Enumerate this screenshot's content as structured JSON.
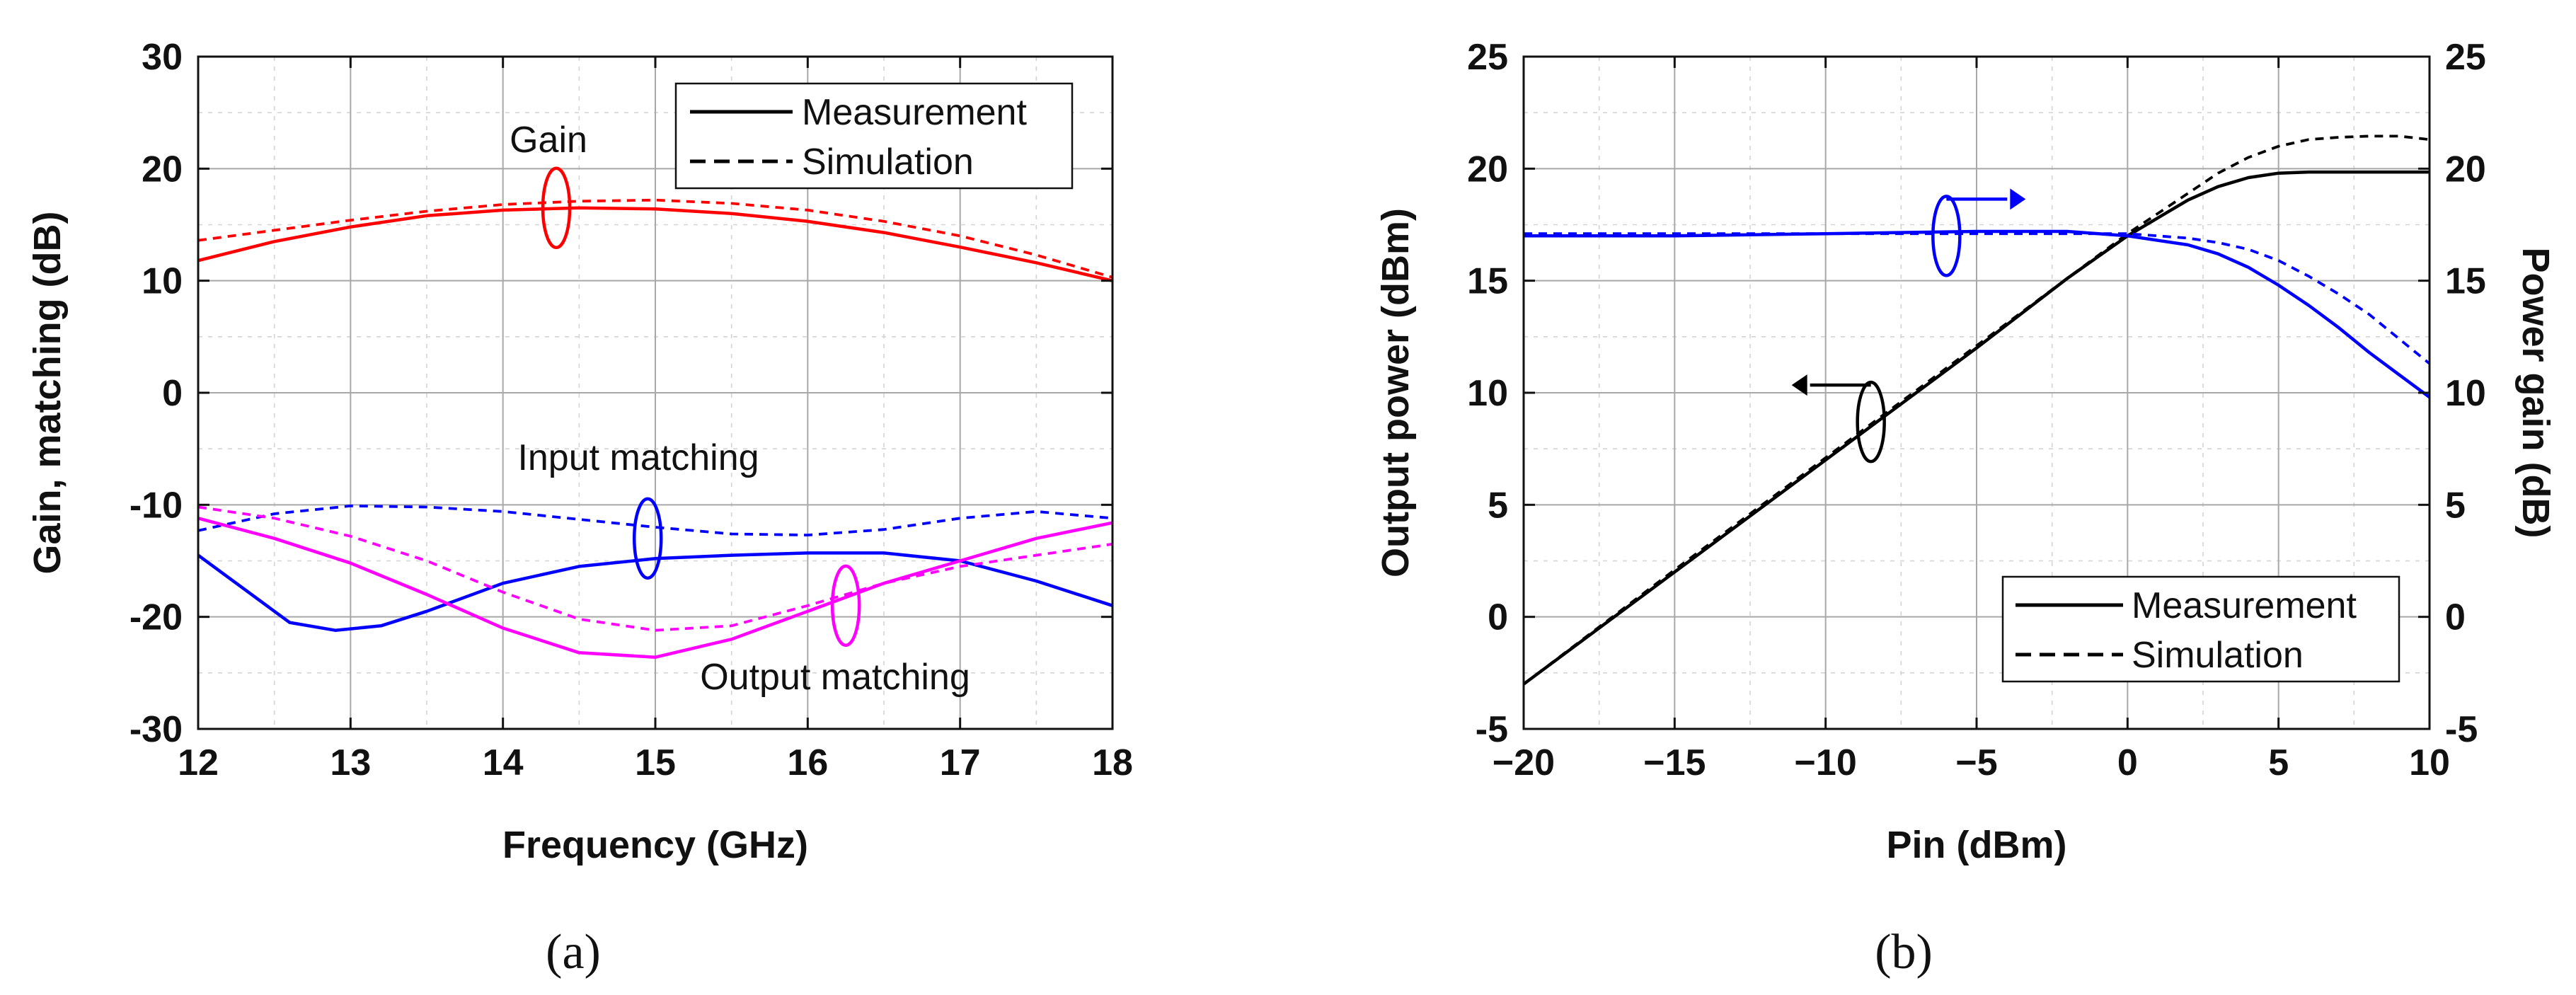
{
  "chart_data": [
    {
      "id": "a",
      "type": "line",
      "caption": "(a)",
      "xlabel": "Frequency (GHz)",
      "ylabel": "Gain, matching (dB)",
      "xlim": [
        12,
        18
      ],
      "ylim": [
        -30,
        30
      ],
      "xticks": [
        12,
        13,
        14,
        15,
        16,
        17,
        18
      ],
      "yticks": [
        -30,
        -20,
        -10,
        0,
        10,
        20,
        30
      ],
      "xtick_labels": [
        "12",
        "13",
        "14",
        "15",
        "16",
        "17",
        "18"
      ],
      "ytick_labels": [
        "-30",
        "-20",
        "-10",
        "0",
        "10",
        "20",
        "30"
      ],
      "grid": true,
      "legend": [
        {
          "label": "Measurement",
          "style": "solid"
        },
        {
          "label": "Simulation",
          "style": "dashed"
        }
      ],
      "series": [
        {
          "name": "Gain (Measurement)",
          "color": "#ff0000",
          "style": "solid",
          "x": [
            12,
            12.5,
            13,
            13.5,
            14,
            14.5,
            15,
            15.5,
            16,
            16.5,
            17,
            17.5,
            18
          ],
          "y": [
            11.8,
            13.5,
            14.8,
            15.8,
            16.3,
            16.5,
            16.4,
            16.0,
            15.3,
            14.3,
            13.0,
            11.6,
            10.0
          ]
        },
        {
          "name": "Gain (Simulation)",
          "color": "#ff0000",
          "style": "dashed",
          "x": [
            12,
            12.5,
            13,
            13.5,
            14,
            14.5,
            15,
            15.5,
            16,
            16.5,
            17,
            17.5,
            18
          ],
          "y": [
            13.6,
            14.5,
            15.4,
            16.2,
            16.8,
            17.1,
            17.2,
            16.9,
            16.3,
            15.3,
            14.0,
            12.3,
            10.3
          ]
        },
        {
          "name": "Input matching (Measurement)",
          "color": "#0000ff",
          "style": "solid",
          "x": [
            12,
            12.3,
            12.6,
            12.9,
            13.2,
            13.5,
            14,
            14.5,
            15,
            15.5,
            16,
            16.5,
            17,
            17.5,
            18
          ],
          "y": [
            -14.5,
            -17.5,
            -20.5,
            -21.2,
            -20.8,
            -19.5,
            -17.0,
            -15.5,
            -14.8,
            -14.5,
            -14.3,
            -14.3,
            -15.0,
            -16.8,
            -19.0
          ]
        },
        {
          "name": "Input matching (Simulation)",
          "color": "#0000ff",
          "style": "dashed",
          "x": [
            12,
            12.5,
            13,
            13.5,
            14,
            14.5,
            15,
            15.5,
            16,
            16.5,
            17,
            17.5,
            18
          ],
          "y": [
            -12.3,
            -10.8,
            -10.1,
            -10.2,
            -10.6,
            -11.3,
            -12.0,
            -12.6,
            -12.7,
            -12.2,
            -11.2,
            -10.6,
            -11.2
          ]
        },
        {
          "name": "Output matching (Measurement)",
          "color": "#ff00ff",
          "style": "solid",
          "x": [
            12,
            12.5,
            13,
            13.5,
            14,
            14.5,
            15,
            15.5,
            16,
            16.5,
            17,
            17.5,
            18
          ],
          "y": [
            -11.2,
            -13.0,
            -15.2,
            -18.0,
            -21.0,
            -23.2,
            -23.6,
            -22.0,
            -19.5,
            -17.0,
            -15.0,
            -13.0,
            -11.6
          ]
        },
        {
          "name": "Output matching (Simulation)",
          "color": "#ff00ff",
          "style": "dashed",
          "x": [
            12,
            12.5,
            13,
            13.5,
            14,
            14.5,
            15,
            15.5,
            16,
            16.5,
            17,
            17.5,
            18
          ],
          "y": [
            -10.2,
            -11.2,
            -12.8,
            -15.0,
            -17.8,
            -20.2,
            -21.2,
            -20.8,
            -19.0,
            -17.0,
            -15.5,
            -14.5,
            -13.5
          ]
        }
      ],
      "annotations": [
        {
          "text": "Gain",
          "color": "#000000",
          "ellipse_color": "#ff0000",
          "at_x": 14.35,
          "at_y": 16.5
        },
        {
          "text": "Input matching",
          "color": "#000000",
          "ellipse_color": "#0000ff",
          "at_x": 14.95,
          "at_y": -13.0
        },
        {
          "text": "Output matching",
          "color": "#000000",
          "ellipse_color": "#ff00ff",
          "at_x": 16.25,
          "at_y": -19.0
        }
      ]
    },
    {
      "id": "b",
      "type": "line",
      "caption": "(b)",
      "xlabel": "Pin (dBm)",
      "ylabel": "Output power (dBm)",
      "y2label": "Power gain (dB)",
      "xlim": [
        -20,
        10
      ],
      "ylim": [
        -5,
        25
      ],
      "y2lim": [
        -5,
        25
      ],
      "xticks": [
        -20,
        -15,
        -10,
        -5,
        0,
        5,
        10
      ],
      "yticks": [
        -5,
        0,
        5,
        10,
        15,
        20,
        25
      ],
      "xtick_labels": [
        "−20",
        "−15",
        "−10",
        "−5",
        "0",
        "5",
        "10"
      ],
      "ytick_labels": [
        "-5",
        "0",
        "5",
        "10",
        "15",
        "20",
        "25"
      ],
      "y2tick_labels": [
        "-5",
        "0",
        "5",
        "10",
        "15",
        "20",
        "25"
      ],
      "grid": true,
      "legend": [
        {
          "label": "Measurement",
          "style": "solid"
        },
        {
          "label": "Simulation",
          "style": "dashed"
        }
      ],
      "series": [
        {
          "name": "Output power (Measurement)",
          "color": "#000000",
          "style": "solid",
          "axis": "left",
          "x": [
            -20,
            -15,
            -10,
            -5,
            -2,
            0,
            1,
            2,
            3,
            4,
            5,
            6,
            8,
            10
          ],
          "y": [
            -3.0,
            2.0,
            7.0,
            12.0,
            15.1,
            17.0,
            17.8,
            18.6,
            19.2,
            19.6,
            19.8,
            19.85,
            19.85,
            19.85
          ]
        },
        {
          "name": "Output power (Simulation)",
          "color": "#000000",
          "style": "dashed",
          "axis": "left",
          "x": [
            -20,
            -15,
            -10,
            -5,
            -2,
            0,
            1,
            2,
            3,
            4,
            5,
            6,
            7,
            8,
            9,
            10
          ],
          "y": [
            -3.0,
            2.1,
            7.1,
            12.1,
            15.1,
            17.1,
            18.0,
            18.9,
            19.8,
            20.5,
            21.0,
            21.3,
            21.4,
            21.45,
            21.45,
            21.3
          ]
        },
        {
          "name": "Power gain (Measurement)",
          "color": "#0000ff",
          "style": "solid",
          "axis": "right",
          "x": [
            -20,
            -15,
            -10,
            -5,
            -2,
            0,
            1,
            2,
            3,
            4,
            5,
            6,
            7,
            8,
            9,
            10
          ],
          "y": [
            17.0,
            17.0,
            17.1,
            17.2,
            17.2,
            17.0,
            16.8,
            16.6,
            16.2,
            15.6,
            14.8,
            13.9,
            12.9,
            11.8,
            10.8,
            9.8
          ]
        },
        {
          "name": "Power gain (Simulation)",
          "color": "#0000ff",
          "style": "dashed",
          "axis": "right",
          "x": [
            -20,
            -15,
            -10,
            -5,
            -2,
            0,
            1,
            2,
            3,
            4,
            5,
            6,
            7,
            8,
            9,
            10
          ],
          "y": [
            17.1,
            17.1,
            17.1,
            17.1,
            17.1,
            17.1,
            17.0,
            16.9,
            16.7,
            16.4,
            15.9,
            15.2,
            14.4,
            13.5,
            12.4,
            11.3
          ]
        }
      ],
      "annotations": [
        {
          "text": "",
          "ellipse_color": "#000000",
          "arrow": "left",
          "at_x": -8.5,
          "at_y": 8.7
        },
        {
          "text": "",
          "ellipse_color": "#0000ff",
          "arrow": "right",
          "at_x": -6.0,
          "at_y": 17.0
        }
      ]
    }
  ]
}
